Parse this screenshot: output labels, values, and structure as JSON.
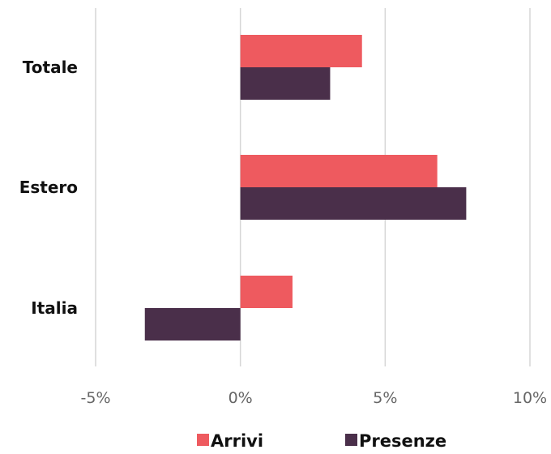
{
  "chart_data": {
    "type": "bar",
    "orientation": "horizontal",
    "categories": [
      "Totale",
      "Estero",
      "Italia"
    ],
    "series": [
      {
        "name": "Arrivi",
        "color": "#EE5A5F",
        "values": [
          4.2,
          6.8,
          1.8
        ]
      },
      {
        "name": "Presenze",
        "color": "#4A2F4A",
        "values": [
          3.1,
          7.8,
          -3.3
        ]
      }
    ],
    "x_ticks": [
      -5,
      0,
      5,
      10
    ],
    "x_tick_labels": [
      "-5%",
      "0%",
      "5%",
      "10%"
    ],
    "xlim": [
      -5,
      10
    ],
    "grid": "vertical",
    "legend_position": "bottom"
  }
}
